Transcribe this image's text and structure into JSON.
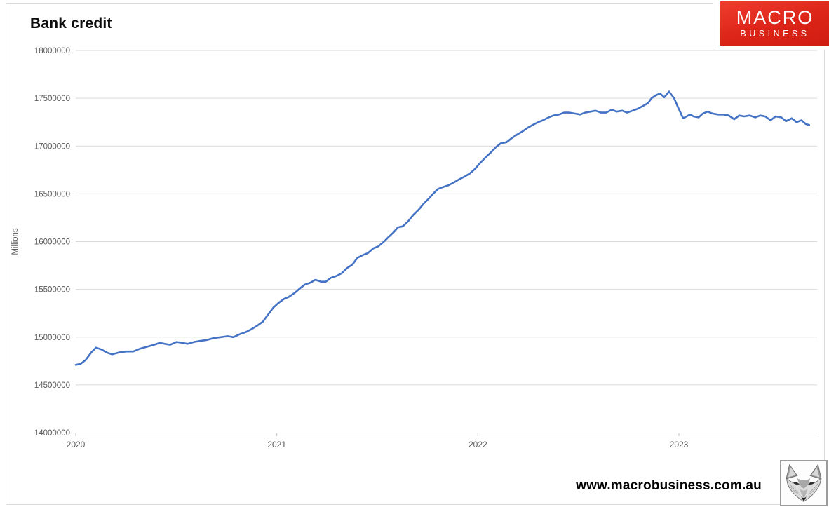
{
  "page": {
    "title": "Bank credit"
  },
  "branding": {
    "logo_line1": "MACRO",
    "logo_line2": "BUSINESS",
    "logo_bg_color": "#dc2418",
    "website": "www.macrobusiness.com.au"
  },
  "colors": {
    "line": "#4472C4",
    "gridline": "#d9d9d9",
    "axis": "#bfbfbf",
    "tick_label": "#595959",
    "title": "#0d0d0d"
  },
  "chart_data": {
    "type": "line",
    "title": "Bank credit",
    "xlabel": "",
    "ylabel": "Millions",
    "ylim": [
      14000000,
      18000000
    ],
    "ytick_step": 500000,
    "yticks": [
      14000000,
      14500000,
      15000000,
      15500000,
      16000000,
      16500000,
      17000000,
      17500000,
      18000000
    ],
    "ytick_labels": [
      "14000000",
      "14500000",
      "15000000",
      "15500000",
      "16000000",
      "16500000",
      "17000000",
      "17500000",
      "18000000"
    ],
    "xlim": [
      2020.0,
      2023.69
    ],
    "xticks": [
      2020,
      2021,
      2022,
      2023
    ],
    "xtick_labels": [
      "2020",
      "2021",
      "2022",
      "2023"
    ],
    "grid": true,
    "legend": false,
    "series": [
      {
        "name": "Bank credit",
        "color": "#4472C4",
        "x": [
          2020.0,
          2020.024,
          2020.049,
          2020.077,
          2020.101,
          2020.129,
          2020.153,
          2020.181,
          2020.216,
          2020.251,
          2020.286,
          2020.321,
          2020.355,
          2020.39,
          2020.418,
          2020.443,
          2020.47,
          2020.502,
          2020.53,
          2020.557,
          2020.589,
          2020.617,
          2020.652,
          2020.686,
          2020.721,
          2020.756,
          2020.784,
          2020.815,
          2020.843,
          2020.871,
          2020.895,
          2020.93,
          2020.958,
          2020.983,
          2021.01,
          2021.035,
          2021.059,
          2021.087,
          2021.115,
          2021.139,
          2021.167,
          2021.192,
          2021.22,
          2021.244,
          2021.268,
          2021.296,
          2021.324,
          2021.348,
          2021.376,
          2021.401,
          2021.429,
          2021.453,
          2021.481,
          2021.505,
          2021.533,
          2021.557,
          2021.582,
          2021.603,
          2021.627,
          2021.652,
          2021.679,
          2021.704,
          2021.732,
          2021.756,
          2021.777,
          2021.801,
          2021.826,
          2021.854,
          2021.882,
          2021.906,
          2021.934,
          2021.958,
          2021.986,
          2022.01,
          2022.038,
          2022.063,
          2022.091,
          2022.115,
          2022.143,
          2022.167,
          2022.195,
          2022.22,
          2022.247,
          2022.272,
          2022.3,
          2022.324,
          2022.352,
          2022.376,
          2022.404,
          2022.429,
          2022.456,
          2022.481,
          2022.509,
          2022.533,
          2022.561,
          2022.585,
          2022.613,
          2022.638,
          2022.666,
          2022.69,
          2022.718,
          2022.742,
          2022.77,
          2022.795,
          2022.822,
          2022.847,
          2022.864,
          2022.885,
          2022.906,
          2022.927,
          2022.951,
          2022.976,
          2022.997,
          2023.021,
          2023.038,
          2023.056,
          2023.073,
          2023.098,
          2023.119,
          2023.143,
          2023.167,
          2023.195,
          2023.22,
          2023.248,
          2023.275,
          2023.3,
          2023.324,
          2023.352,
          2023.38,
          2023.404,
          2023.429,
          2023.456,
          2023.481,
          2023.509,
          2023.533,
          2023.561,
          2023.585,
          2023.61,
          2023.631,
          2023.648
        ],
        "y": [
          14710000,
          14720000,
          14760000,
          14840000,
          14890000,
          14870000,
          14840000,
          14820000,
          14840000,
          14850000,
          14850000,
          14880000,
          14900000,
          14920000,
          14940000,
          14930000,
          14920000,
          14950000,
          14940000,
          14930000,
          14950000,
          14960000,
          14970000,
          14990000,
          15000000,
          15010000,
          15000000,
          15030000,
          15050000,
          15080000,
          15110000,
          15160000,
          15240000,
          15310000,
          15360000,
          15400000,
          15420000,
          15460000,
          15510000,
          15550000,
          15570000,
          15600000,
          15580000,
          15580000,
          15620000,
          15640000,
          15670000,
          15720000,
          15760000,
          15830000,
          15860000,
          15880000,
          15930000,
          15950000,
          16000000,
          16050000,
          16100000,
          16150000,
          16160000,
          16210000,
          16280000,
          16330000,
          16400000,
          16450000,
          16500000,
          16550000,
          16570000,
          16590000,
          16620000,
          16650000,
          16680000,
          16710000,
          16760000,
          16820000,
          16880000,
          16930000,
          16990000,
          17030000,
          17040000,
          17080000,
          17120000,
          17150000,
          17190000,
          17220000,
          17250000,
          17270000,
          17300000,
          17320000,
          17330000,
          17350000,
          17350000,
          17340000,
          17330000,
          17350000,
          17360000,
          17370000,
          17350000,
          17350000,
          17380000,
          17360000,
          17370000,
          17350000,
          17370000,
          17390000,
          17420000,
          17450000,
          17500000,
          17530000,
          17550000,
          17510000,
          17570000,
          17500000,
          17400000,
          17290000,
          17310000,
          17330000,
          17310000,
          17300000,
          17340000,
          17360000,
          17340000,
          17330000,
          17330000,
          17320000,
          17280000,
          17320000,
          17310000,
          17320000,
          17300000,
          17320000,
          17310000,
          17270000,
          17310000,
          17300000,
          17260000,
          17290000,
          17250000,
          17270000,
          17230000,
          17220000
        ]
      }
    ]
  }
}
